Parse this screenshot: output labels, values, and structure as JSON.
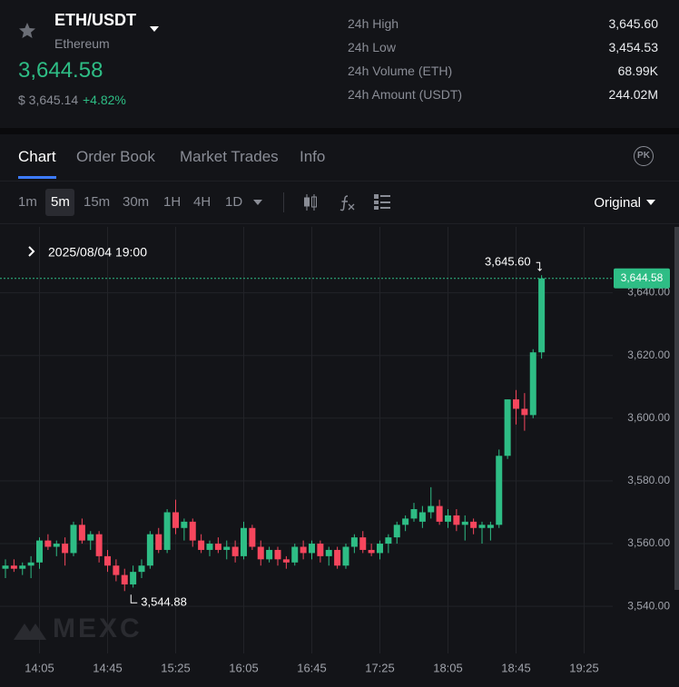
{
  "header": {
    "pair": "ETH/USDT",
    "name": "Ethereum",
    "price": "3,644.58",
    "usd_price": "$ 3,645.14",
    "change": "+4.82%"
  },
  "stats": [
    {
      "label": "24h High",
      "value": "3,645.60"
    },
    {
      "label": "24h Low",
      "value": "3,454.53"
    },
    {
      "label": "24h Volume (ETH)",
      "value": "68.99K"
    },
    {
      "label": "24h Amount (USDT)",
      "value": "244.02M"
    }
  ],
  "tabs": [
    "Chart",
    "Order Book",
    "Market Trades",
    "Info"
  ],
  "badge": "PK",
  "timeframes": [
    "1m",
    "5m",
    "15m",
    "30m",
    "1H",
    "4H",
    "1D"
  ],
  "price_mode": "Original",
  "chart_data": {
    "type": "candlestick",
    "info_label": "2025/08/04 19:00",
    "watermark": "MEXC",
    "categories": [
      null,
      null,
      null,
      null,
      "14:05",
      null,
      null,
      null,
      null,
      null,
      null,
      null,
      "14:45",
      null,
      null,
      null,
      null,
      null,
      null,
      null,
      "15:25",
      null,
      null,
      null,
      null,
      null,
      null,
      null,
      "16:05",
      null,
      null,
      null,
      null,
      null,
      null,
      null,
      "16:45",
      null,
      null,
      null,
      null,
      null,
      null,
      null,
      "17:25",
      null,
      null,
      null,
      null,
      null,
      null,
      null,
      "18:05",
      null,
      null,
      null,
      null,
      null,
      null,
      null,
      "18:45",
      null,
      null,
      null,
      null,
      null,
      null,
      null,
      "19:25",
      null,
      null,
      null
    ],
    "series": [
      {
        "open": [
          3552,
          3553,
          3552,
          3553,
          3554,
          3561,
          3559,
          3560,
          3557,
          3566,
          3561,
          3563,
          3556,
          3553,
          3550,
          3547,
          3551,
          3553,
          3563,
          3558,
          3570,
          3565,
          3567,
          3561,
          3558,
          3560,
          3558,
          3559,
          3556,
          3565,
          3559,
          3555,
          3558,
          3555,
          3554,
          3559,
          3557,
          3560,
          3556,
          3558,
          3553,
          3559,
          3562,
          3558,
          3557,
          3560,
          3562,
          3566,
          3568,
          3567,
          3570,
          3572,
          3567,
          3569,
          3566,
          3567,
          3565,
          3565,
          3566,
          3588,
          3606,
          3603,
          3601,
          3621,
          null,
          null,
          null,
          null,
          null,
          null,
          null,
          null
        ],
        "high": [
          3555,
          3555,
          3554,
          3556,
          3562,
          3563,
          3561,
          3562,
          3567,
          3568,
          3564,
          3564,
          3558,
          3555,
          3552,
          3553,
          3555,
          3564,
          3565,
          3571,
          3574,
          3568,
          3568,
          3563,
          3561,
          3562,
          3561,
          3561,
          3567,
          3566,
          3561,
          3559,
          3559,
          3556,
          3560,
          3561,
          3561,
          3561,
          3559,
          3559,
          3560,
          3563,
          3564,
          3560,
          3561,
          3563,
          3567,
          3569,
          3573,
          3572,
          3578,
          3574,
          3571,
          3571,
          3569,
          3568,
          3567,
          3567,
          3590,
          3606,
          3609,
          3608,
          3622,
          3645.6,
          null,
          null,
          null,
          null,
          null,
          null,
          null,
          null
        ],
        "low": [
          3549,
          3551,
          3550,
          3549,
          3552,
          3558,
          3556,
          3553,
          3556,
          3560,
          3558,
          3554,
          3551,
          3548,
          3544.88,
          3546,
          3549,
          3552,
          3557,
          3557,
          3563,
          3561,
          3559,
          3557,
          3556,
          3557,
          3555,
          3554,
          3555,
          3558,
          3553,
          3554,
          3553,
          3552,
          3553,
          3555,
          3555,
          3554,
          3553,
          3552,
          3552,
          3557,
          3557,
          3556,
          3555,
          3557,
          3560,
          3564,
          3567,
          3565,
          3568,
          3566,
          3565,
          3564,
          3561,
          3563,
          3560,
          3561,
          3565,
          3587,
          3598,
          3596,
          3600,
          3619,
          null,
          null,
          null,
          null,
          null,
          null,
          null,
          null
        ],
        "close": [
          3553,
          3552,
          3553,
          3554,
          3561,
          3559,
          3560,
          3557,
          3566,
          3561,
          3563,
          3556,
          3553,
          3550,
          3547,
          3551,
          3553,
          3563,
          3558,
          3570,
          3565,
          3567,
          3561,
          3558,
          3560,
          3558,
          3559,
          3556,
          3565,
          3559,
          3555,
          3558,
          3555,
          3554,
          3559,
          3557,
          3560,
          3556,
          3558,
          3553,
          3559,
          3562,
          3558,
          3557,
          3560,
          3562,
          3566,
          3568,
          3571,
          3570,
          3572,
          3567,
          3569,
          3566,
          3567,
          3565,
          3566,
          3566,
          3588,
          3606,
          3603,
          3601,
          3621,
          3644.58,
          null,
          null,
          null,
          null,
          null,
          null,
          null,
          null
        ]
      }
    ],
    "up_color": "#2ebd85",
    "down_color": "#f6465d",
    "ylim": [
      3525,
      3661
    ],
    "yticks": [
      {
        "value": 3540,
        "label": "3,540.00"
      },
      {
        "value": 3560,
        "label": "3,560.00"
      },
      {
        "value": 3580,
        "label": "3,580.00"
      },
      {
        "value": 3600,
        "label": "3,600.00"
      },
      {
        "value": 3620,
        "label": "3,620.00"
      },
      {
        "value": 3640,
        "label": "3,640.00"
      }
    ],
    "grid": true,
    "high_marker": {
      "value": 3645.6,
      "label": "3,645.60"
    },
    "low_marker": {
      "value": 3544.88,
      "label": "3,544.88"
    },
    "last_price": {
      "value": 3644.58,
      "label": "3,644.58"
    }
  }
}
